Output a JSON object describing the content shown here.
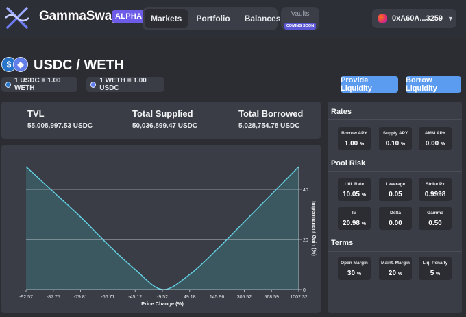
{
  "header": {
    "brand": "GammaSwap",
    "badge": "ALPHA",
    "nav": [
      {
        "label": "Markets",
        "active": true
      },
      {
        "label": "Portfolio",
        "active": false
      },
      {
        "label": "Balances",
        "active": false
      }
    ],
    "vaults": {
      "label": "Vaults",
      "badge": "COMING SOON"
    },
    "wallet": {
      "address": "0xA60A...3259"
    }
  },
  "pair": {
    "title": "USDC / WETH",
    "rate1": "1 USDC = 1.00 WETH",
    "rate2": "1 WETH = 1.00 USDC",
    "provide_label": "Provide Liquidity",
    "borrow_label": "Borrow Liquidity"
  },
  "stats": [
    {
      "label": "TVL",
      "value": "55,008,997.53 USDC"
    },
    {
      "label": "Total Supplied",
      "value": "50,036,899.47 USDC"
    },
    {
      "label": "Total Borrowed",
      "value": "5,028,754.78 USDC"
    }
  ],
  "rates": {
    "title": "Rates",
    "cards": [
      {
        "label": "Borrow APY",
        "value": "1.00",
        "unit": "%"
      },
      {
        "label": "Supply APY",
        "value": "0.10",
        "unit": "%"
      },
      {
        "label": "AMM APY",
        "value": "0.00",
        "unit": "%"
      }
    ]
  },
  "risk": {
    "title": "Pool Risk",
    "cards": [
      {
        "label": "Util. Rate",
        "value": "10.05",
        "unit": "%"
      },
      {
        "label": "Leverage",
        "value": "0.05",
        "unit": ""
      },
      {
        "label": "Strike Px",
        "value": "0.9998",
        "unit": ""
      },
      {
        "label": "IV",
        "value": "20.98",
        "unit": "%"
      },
      {
        "label": "Delta",
        "value": "0.00",
        "unit": ""
      },
      {
        "label": "Gamma",
        "value": "0.50",
        "unit": ""
      }
    ]
  },
  "terms": {
    "title": "Terms",
    "cards": [
      {
        "label": "Open Margin",
        "value": "30",
        "unit": "%"
      },
      {
        "label": "Maint. Margin",
        "value": "20",
        "unit": "%"
      },
      {
        "label": "Liq. Penalty",
        "value": "5",
        "unit": "%"
      }
    ]
  },
  "colors": {
    "accent": "#5b9bf0",
    "brand_badge": "#6d5ce8",
    "curve": "#63d3e6",
    "area": "#3c5a63"
  },
  "chart_data": {
    "type": "area",
    "title": "",
    "xlabel": "Price Change (%)",
    "ylabel": "Impermanent Gain (%)",
    "x_ticks": [
      "-92.57",
      "-87.75",
      "-79.81",
      "-66.71",
      "-45.12",
      "-9.52",
      "49.18",
      "145.96",
      "305.52",
      "568.59",
      "1002.32"
    ],
    "y_ticks": [
      "0",
      "20",
      "40"
    ],
    "ylim": [
      0,
      49
    ],
    "grid": true,
    "series": [
      {
        "x": [
          "-92.57",
          "-87.75",
          "-79.81",
          "-66.71",
          "-45.12",
          "-9.52",
          "49.18",
          "145.96",
          "305.52",
          "568.59",
          "1002.32"
        ],
        "values": [
          49,
          39,
          29,
          18,
          8,
          0,
          6,
          16,
          27,
          38,
          49
        ]
      }
    ]
  }
}
